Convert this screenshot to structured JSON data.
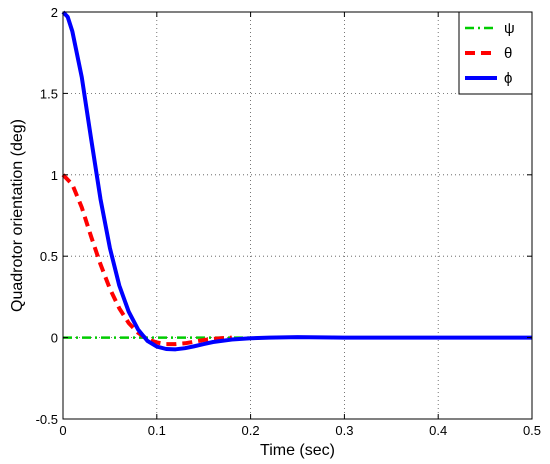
{
  "chart_data": {
    "type": "line",
    "title": "",
    "xlabel": "Time (sec)",
    "ylabel": "Quadrotor orientation (deg)",
    "xlim": [
      0,
      0.5
    ],
    "ylim": [
      -0.5,
      2
    ],
    "xticks": [
      0,
      0.1,
      0.2,
      0.3,
      0.4,
      0.5
    ],
    "xtick_labels": [
      "0",
      "0.1",
      "0.2",
      "0.3",
      "0.4",
      "0.5"
    ],
    "yticks": [
      -0.5,
      0,
      0.5,
      1,
      1.5,
      2
    ],
    "ytick_labels": [
      "-0.5",
      "0",
      "0.5",
      "1",
      "1.5",
      "2"
    ],
    "grid": true,
    "legend_position": "top-right",
    "series": [
      {
        "name": "ψ",
        "color": "#00cc00",
        "style": "dash-dot",
        "x": [
          0,
          0.1,
          0.2
        ],
        "y": [
          0,
          0,
          0
        ]
      },
      {
        "name": "θ",
        "color": "#ff0000",
        "style": "dashed",
        "x": [
          0,
          0.01,
          0.02,
          0.03,
          0.04,
          0.05,
          0.06,
          0.07,
          0.08,
          0.09,
          0.1,
          0.11,
          0.12,
          0.13,
          0.14,
          0.15,
          0.16,
          0.17,
          0.18
        ],
        "y": [
          1,
          0.94,
          0.8,
          0.62,
          0.45,
          0.3,
          0.18,
          0.09,
          0.03,
          -0.01,
          -0.03,
          -0.04,
          -0.04,
          -0.035,
          -0.025,
          -0.015,
          -0.008,
          -0.003,
          0
        ]
      },
      {
        "name": "ϕ",
        "color": "#0000ff",
        "style": "solid",
        "x": [
          0,
          0.005,
          0.01,
          0.02,
          0.03,
          0.04,
          0.05,
          0.06,
          0.07,
          0.08,
          0.09,
          0.1,
          0.11,
          0.12,
          0.13,
          0.14,
          0.15,
          0.16,
          0.18,
          0.2,
          0.22,
          0.25,
          0.3,
          0.35,
          0.4,
          0.45,
          0.5
        ],
        "y": [
          2,
          1.97,
          1.88,
          1.6,
          1.22,
          0.85,
          0.55,
          0.32,
          0.16,
          0.05,
          -0.02,
          -0.055,
          -0.07,
          -0.072,
          -0.065,
          -0.053,
          -0.04,
          -0.027,
          -0.012,
          -0.004,
          0,
          0.003,
          0,
          0,
          0,
          0,
          0
        ]
      }
    ]
  }
}
